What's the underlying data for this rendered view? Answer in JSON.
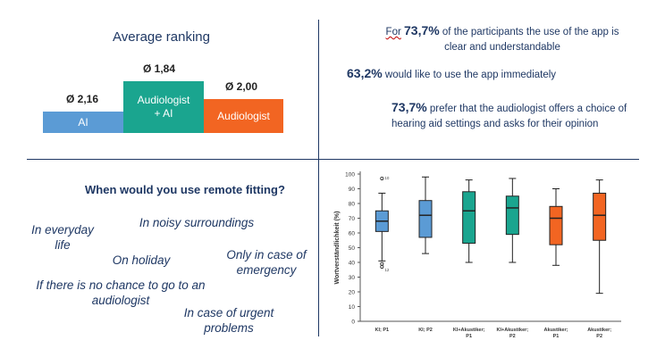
{
  "ranking": {
    "title": "Average ranking",
    "bars": [
      {
        "label": "AI",
        "value_label": "Ø 2,16",
        "color": "#5b9bd5"
      },
      {
        "label": "Audiologist\n+ AI",
        "value_label": "Ø 1,84",
        "color": "#1aa58f"
      },
      {
        "label": "Audiologist",
        "value_label": "Ø 2,00",
        "color": "#f26522"
      }
    ]
  },
  "stats": [
    {
      "value": "73,7%",
      "prefix": "For",
      "text": "of the participants the use of the app is clear and understandable"
    },
    {
      "value": "63,2%",
      "text": "would like to use the app immediately"
    },
    {
      "value": "73,7%",
      "text": "prefer that the audiologist offers a choice of hearing aid settings and asks for their opinion"
    }
  ],
  "remote": {
    "question": "When would you use remote fitting?",
    "answers": [
      "In everyday life",
      "In noisy surroundings",
      "On holiday",
      "Only in case of emergency",
      "If there is no chance to go to an audiologist",
      "In case of urgent problems"
    ]
  },
  "chart_data": {
    "type": "box",
    "ylabel": "Wortverständlichkeit (%)",
    "ylim": [
      0,
      100
    ],
    "yticks": [
      0,
      10,
      20,
      30,
      40,
      50,
      60,
      70,
      80,
      90,
      100
    ],
    "grid": false,
    "categories": [
      "KI; P1",
      "KI; P2",
      "KI+Akustiker; P1",
      "KI+Akustiker; P2",
      "Akustiker; P1",
      "Akustiker; P2"
    ],
    "boxes": [
      {
        "min": 41,
        "q1": 61,
        "median": 68,
        "q3": 75,
        "max": 87,
        "color": "#5b9bd5",
        "outliers": [
          97,
          39,
          37
        ],
        "outlier_labels": [
          "10",
          "",
          "12"
        ]
      },
      {
        "min": 46,
        "q1": 57,
        "median": 72,
        "q3": 82,
        "max": 98,
        "color": "#5b9bd5",
        "outliers": [],
        "outlier_labels": []
      },
      {
        "min": 40,
        "q1": 53,
        "median": 75,
        "q3": 88,
        "max": 96,
        "color": "#1aa58f",
        "outliers": [],
        "outlier_labels": []
      },
      {
        "min": 40,
        "q1": 59,
        "median": 77,
        "q3": 85,
        "max": 97,
        "color": "#1aa58f",
        "outliers": [],
        "outlier_labels": []
      },
      {
        "min": 38,
        "q1": 52,
        "median": 70,
        "q3": 78,
        "max": 90,
        "color": "#f26522",
        "outliers": [],
        "outlier_labels": []
      },
      {
        "min": 19,
        "q1": 55,
        "median": 72,
        "q3": 87,
        "max": 96,
        "color": "#f26522",
        "outliers": [],
        "outlier_labels": []
      }
    ]
  }
}
